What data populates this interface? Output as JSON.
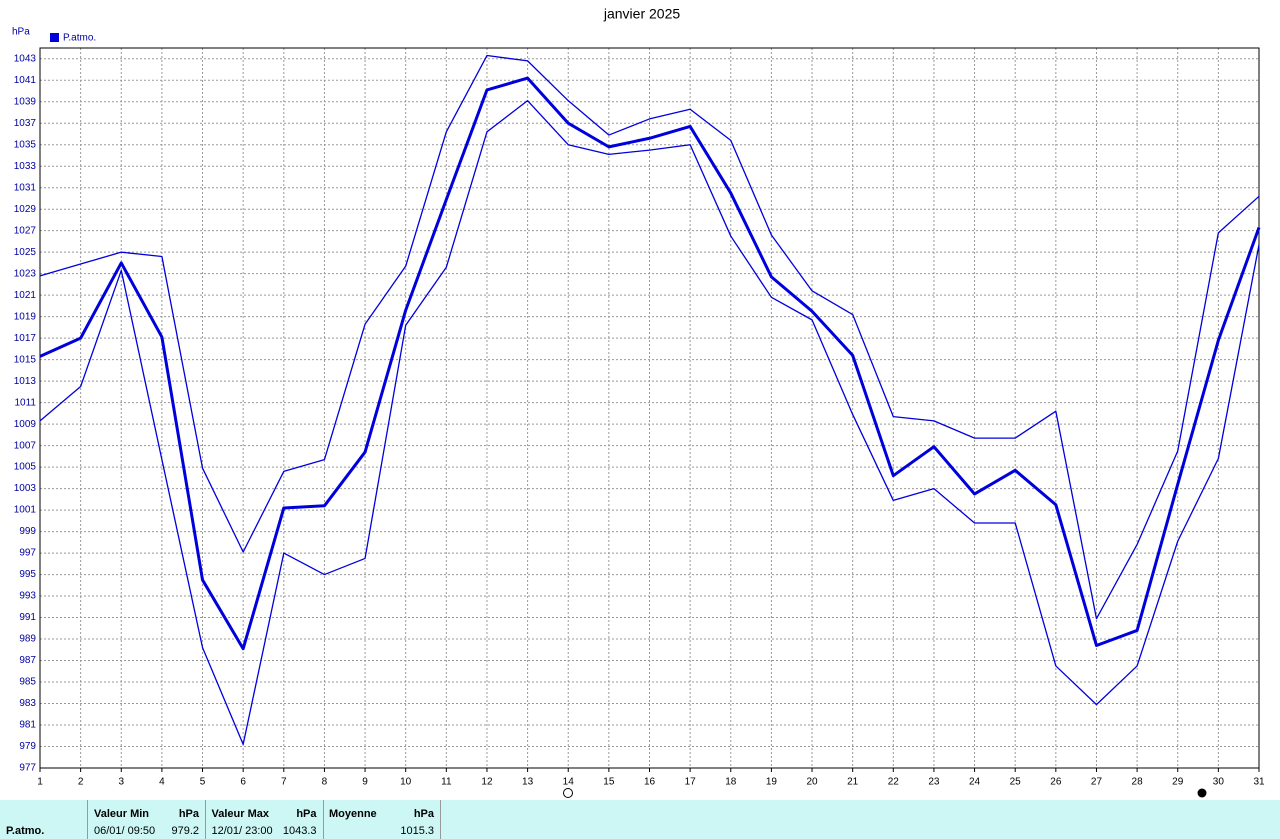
{
  "chart_data": {
    "type": "line",
    "title": "janvier 2025",
    "y_label": "hPa",
    "x": [
      1,
      2,
      3,
      4,
      5,
      6,
      7,
      8,
      9,
      10,
      11,
      12,
      13,
      14,
      15,
      16,
      17,
      18,
      19,
      20,
      21,
      22,
      23,
      24,
      25,
      26,
      27,
      28,
      29,
      30,
      31
    ],
    "xlim": [
      1,
      31
    ],
    "xticks": [
      1,
      2,
      3,
      4,
      5,
      6,
      7,
      8,
      9,
      10,
      11,
      12,
      13,
      14,
      15,
      16,
      17,
      18,
      19,
      20,
      21,
      22,
      23,
      24,
      25,
      26,
      27,
      28,
      29,
      30,
      31
    ],
    "ylim": [
      977,
      1044
    ],
    "yticks": [
      977,
      979,
      981,
      983,
      985,
      987,
      989,
      991,
      993,
      995,
      997,
      999,
      1001,
      1003,
      1005,
      1007,
      1009,
      1011,
      1013,
      1015,
      1017,
      1019,
      1021,
      1023,
      1025,
      1027,
      1029,
      1031,
      1033,
      1035,
      1037,
      1039,
      1041,
      1043
    ],
    "grid": true,
    "series": [
      {
        "color": "#0000dd",
        "line_width": 1.3,
        "values": [
          1022.8,
          1023.9,
          1025.0,
          1024.6,
          1004.9,
          997.1,
          1004.6,
          1005.7,
          1018.3,
          1023.7,
          1036.2,
          1043.3,
          1042.8,
          1039.1,
          1035.9,
          1037.4,
          1038.3,
          1035.4,
          1026.6,
          1021.4,
          1019.2,
          1009.7,
          1009.3,
          1007.7,
          1007.7,
          1010.2,
          990.9,
          997.8,
          1006.5,
          1026.8,
          1030.2
        ]
      },
      {
        "name": "P.atmo.",
        "color": "#0000dd",
        "line_width": 3,
        "values": [
          1015.3,
          1017.0,
          1024.0,
          1017.1,
          994.5,
          988.1,
          1001.2,
          1001.4,
          1006.4,
          1019.6,
          1029.9,
          1040.1,
          1041.2,
          1037.0,
          1034.8,
          1035.6,
          1036.7,
          1030.5,
          1022.7,
          1019.5,
          1015.4,
          1004.2,
          1006.9,
          1002.5,
          1004.7,
          1001.5,
          988.4,
          989.8,
          1003.4,
          1016.8,
          1027.3
        ]
      },
      {
        "color": "#0000dd",
        "line_width": 1.3,
        "values": [
          1009.3,
          1012.5,
          1023.3,
          1005.7,
          988.2,
          979.2,
          997.0,
          995.0,
          996.5,
          1018.2,
          1023.6,
          1036.2,
          1039.1,
          1035.0,
          1034.1,
          1034.5,
          1035.0,
          1026.5,
          1020.8,
          1018.7,
          1009.9,
          1001.9,
          1003.0,
          999.8,
          999.8,
          986.5,
          982.9,
          986.5,
          998.1,
          1005.8,
          1025.7
        ]
      }
    ]
  },
  "summary": {
    "label": "P.atmo.",
    "columns": [
      {
        "title": "Valeur Min",
        "unit": "hPa",
        "date": "06/01/  09:50",
        "value": "979.2"
      },
      {
        "title": "Valeur Max",
        "unit": "hPa",
        "date": "12/01/  23:00",
        "value": "1043.3"
      },
      {
        "title": "Moyenne",
        "unit": "hPa",
        "date": "",
        "value": "1015.3"
      }
    ]
  }
}
